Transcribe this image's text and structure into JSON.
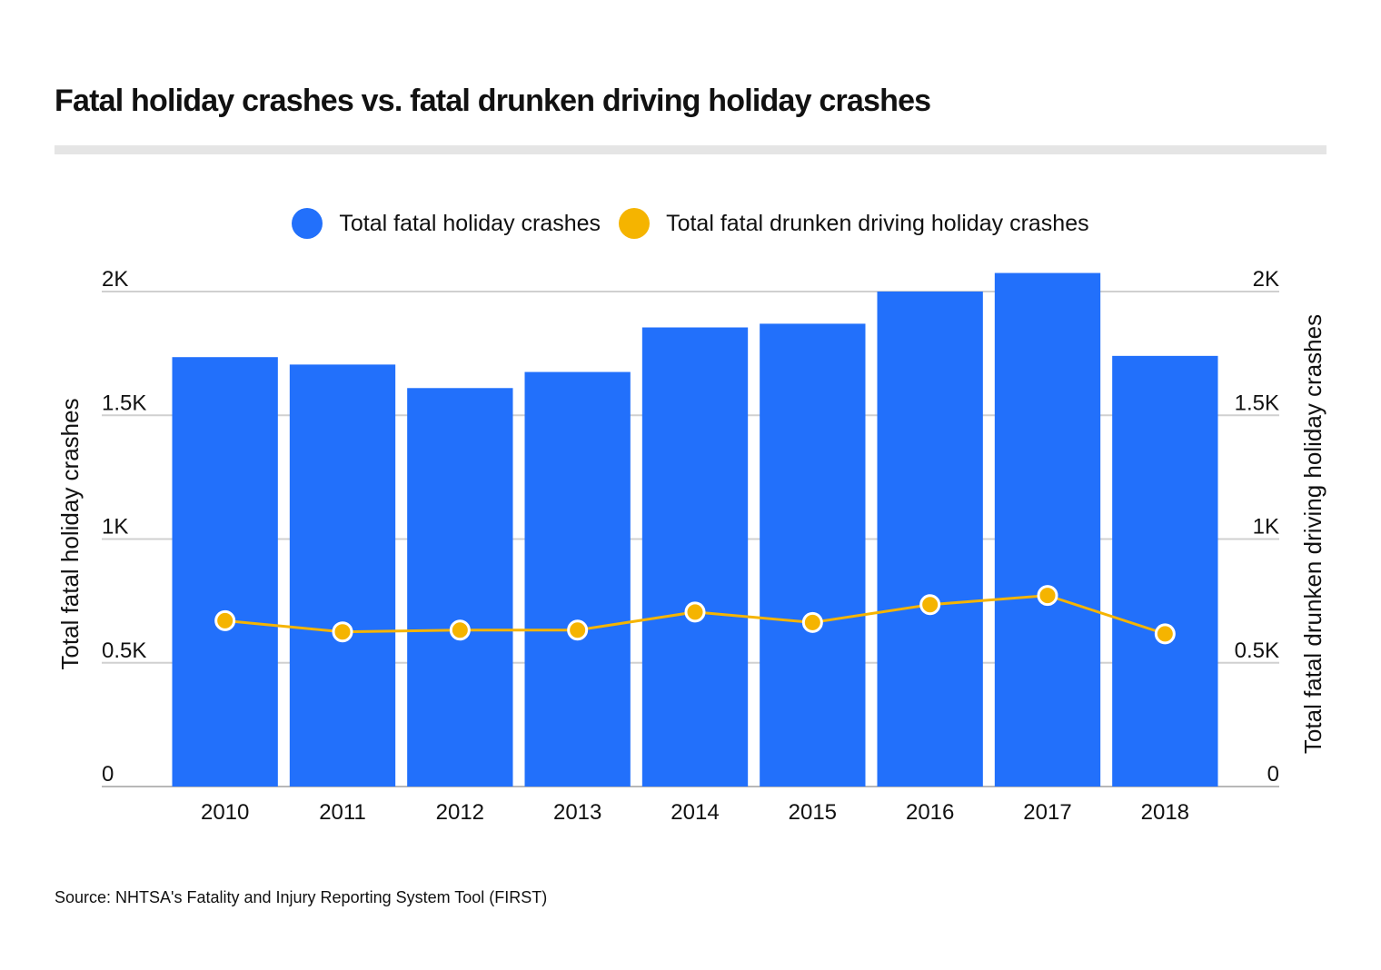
{
  "title": "Fatal holiday crashes vs. fatal drunken driving holiday crashes",
  "source": "Source: NHTSA's Fatality and Injury Reporting System Tool (FIRST)",
  "colors": {
    "bars": "#2270fb",
    "line": "#f5b400",
    "grid": "#d0d0d0"
  },
  "chart_data": {
    "type": "bar",
    "categories": [
      "2010",
      "2011",
      "2012",
      "2013",
      "2014",
      "2015",
      "2016",
      "2017",
      "2018"
    ],
    "series": [
      {
        "name": "Total fatal holiday crashes",
        "type": "bar",
        "axis": "left",
        "values": [
          1735,
          1705,
          1610,
          1675,
          1855,
          1870,
          2000,
          2075,
          1740
        ]
      },
      {
        "name": "Total fatal drunken driving holiday crashes",
        "type": "line",
        "axis": "right",
        "values": [
          670,
          625,
          632,
          632,
          705,
          663,
          735,
          772,
          617
        ]
      }
    ],
    "ylabel": "Total fatal holiday crashes",
    "y2label": "Total fatal drunken driving holiday crashes",
    "ylim": [
      0,
      2000
    ],
    "y2lim": [
      0,
      2000
    ],
    "yticks": [
      "0",
      "0.5K",
      "1K",
      "1.5K",
      "2K"
    ],
    "ytick_values": [
      0,
      500,
      1000,
      1500,
      2000
    ],
    "legend": "top-center",
    "grid": true
  }
}
